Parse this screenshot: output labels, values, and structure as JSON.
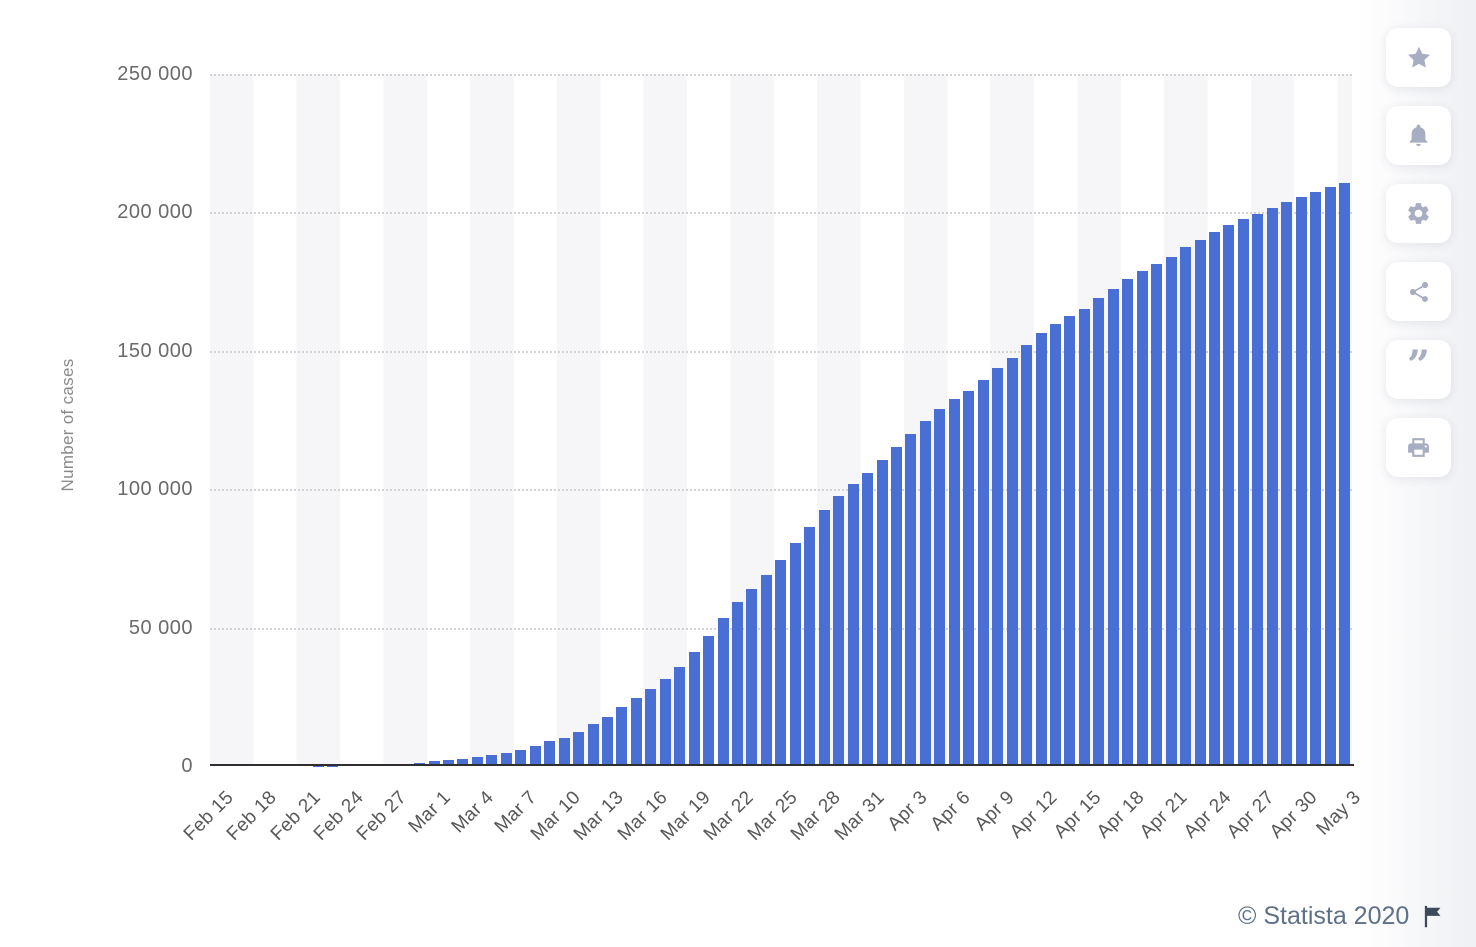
{
  "chart_data": {
    "type": "bar",
    "title": "",
    "xlabel": "",
    "ylabel": "Number of cases",
    "ylim": [
      0,
      250000
    ],
    "grid": "horizontal-dotted",
    "background_stripes": "alternating 3-day vertical bands",
    "bar_color": "#4a6fd4",
    "y_ticks": [
      {
        "label": "250 000",
        "value": 250000
      },
      {
        "label": "200 000",
        "value": 200000
      },
      {
        "label": "150 000",
        "value": 150000
      },
      {
        "label": "100 000",
        "value": 100000
      },
      {
        "label": "50 000",
        "value": 50000
      },
      {
        "label": "0",
        "value": 0
      }
    ],
    "x_tick_every": 3,
    "x_tick_labels": [
      "Feb 15",
      "Feb 18",
      "Feb 21",
      "Feb 24",
      "Feb 27",
      "Mar 1",
      "Mar 4",
      "Mar 7",
      "Mar 10",
      "Mar 13",
      "Mar 16",
      "Mar 19",
      "Mar 22",
      "Mar 25",
      "Mar 28",
      "Mar 31",
      "Apr 3",
      "Apr 6",
      "Apr 9",
      "Apr 12",
      "Apr 15",
      "Apr 18",
      "Apr 21",
      "Apr 24",
      "Apr 27",
      "Apr 30",
      "May 3"
    ],
    "x": [
      "Feb 15",
      "Feb 16",
      "Feb 17",
      "Feb 18",
      "Feb 19",
      "Feb 20",
      "Feb 21",
      "Feb 22",
      "Feb 23",
      "Feb 24",
      "Feb 25",
      "Feb 26",
      "Feb 27",
      "Feb 28",
      "Feb 29",
      "Mar 1",
      "Mar 2",
      "Mar 3",
      "Mar 4",
      "Mar 5",
      "Mar 6",
      "Mar 7",
      "Mar 8",
      "Mar 9",
      "Mar 10",
      "Mar 11",
      "Mar 12",
      "Mar 13",
      "Mar 14",
      "Mar 15",
      "Mar 16",
      "Mar 17",
      "Mar 18",
      "Mar 19",
      "Mar 20",
      "Mar 21",
      "Mar 22",
      "Mar 23",
      "Mar 24",
      "Mar 25",
      "Mar 26",
      "Mar 27",
      "Mar 28",
      "Mar 29",
      "Mar 30",
      "Mar 31",
      "Apr 1",
      "Apr 2",
      "Apr 3",
      "Apr 4",
      "Apr 5",
      "Apr 6",
      "Apr 7",
      "Apr 8",
      "Apr 9",
      "Apr 10",
      "Apr 11",
      "Apr 12",
      "Apr 13",
      "Apr 14",
      "Apr 15",
      "Apr 16",
      "Apr 17",
      "Apr 18",
      "Apr 19",
      "Apr 20",
      "Apr 21",
      "Apr 22",
      "Apr 23",
      "Apr 24",
      "Apr 25",
      "Apr 26",
      "Apr 27",
      "Apr 28",
      "Apr 29",
      "Apr 30",
      "May 1",
      "May 2",
      "May 3"
    ],
    "values": [
      3,
      3,
      3,
      3,
      3,
      4,
      21,
      79,
      157,
      229,
      323,
      470,
      655,
      889,
      1128,
      1700,
      2040,
      2500,
      3090,
      3860,
      4640,
      5880,
      7380,
      9170,
      10150,
      12460,
      15110,
      17660,
      21160,
      24750,
      27980,
      31510,
      35710,
      41040,
      47020,
      53580,
      59140,
      63930,
      69180,
      74390,
      80590,
      86500,
      92470,
      97690,
      101740,
      105790,
      110570,
      115240,
      119830,
      124630,
      128950,
      132550,
      135590,
      139420,
      143630,
      147580,
      152270,
      156360,
      159520,
      162490,
      165160,
      168940,
      172430,
      175930,
      178970,
      181230,
      183960,
      187330,
      189970,
      192990,
      195350,
      197680,
      199410,
      201510,
      203590,
      205460,
      207430,
      209330,
      210720
    ]
  },
  "toolbar": {
    "buttons": [
      {
        "id": "favorite",
        "icon": "star-icon"
      },
      {
        "id": "notifications",
        "icon": "bell-icon"
      },
      {
        "id": "settings",
        "icon": "gear-icon"
      },
      {
        "id": "share",
        "icon": "share-icon"
      },
      {
        "id": "cite",
        "icon": "quote-icon"
      },
      {
        "id": "print",
        "icon": "printer-icon"
      }
    ],
    "icon_color": "#a7aec1"
  },
  "footer": {
    "copyright": "© Statista 2020",
    "flag_icon": "flag-icon",
    "flag_color": "#3d4a59",
    "text_color": "#5e7187"
  }
}
